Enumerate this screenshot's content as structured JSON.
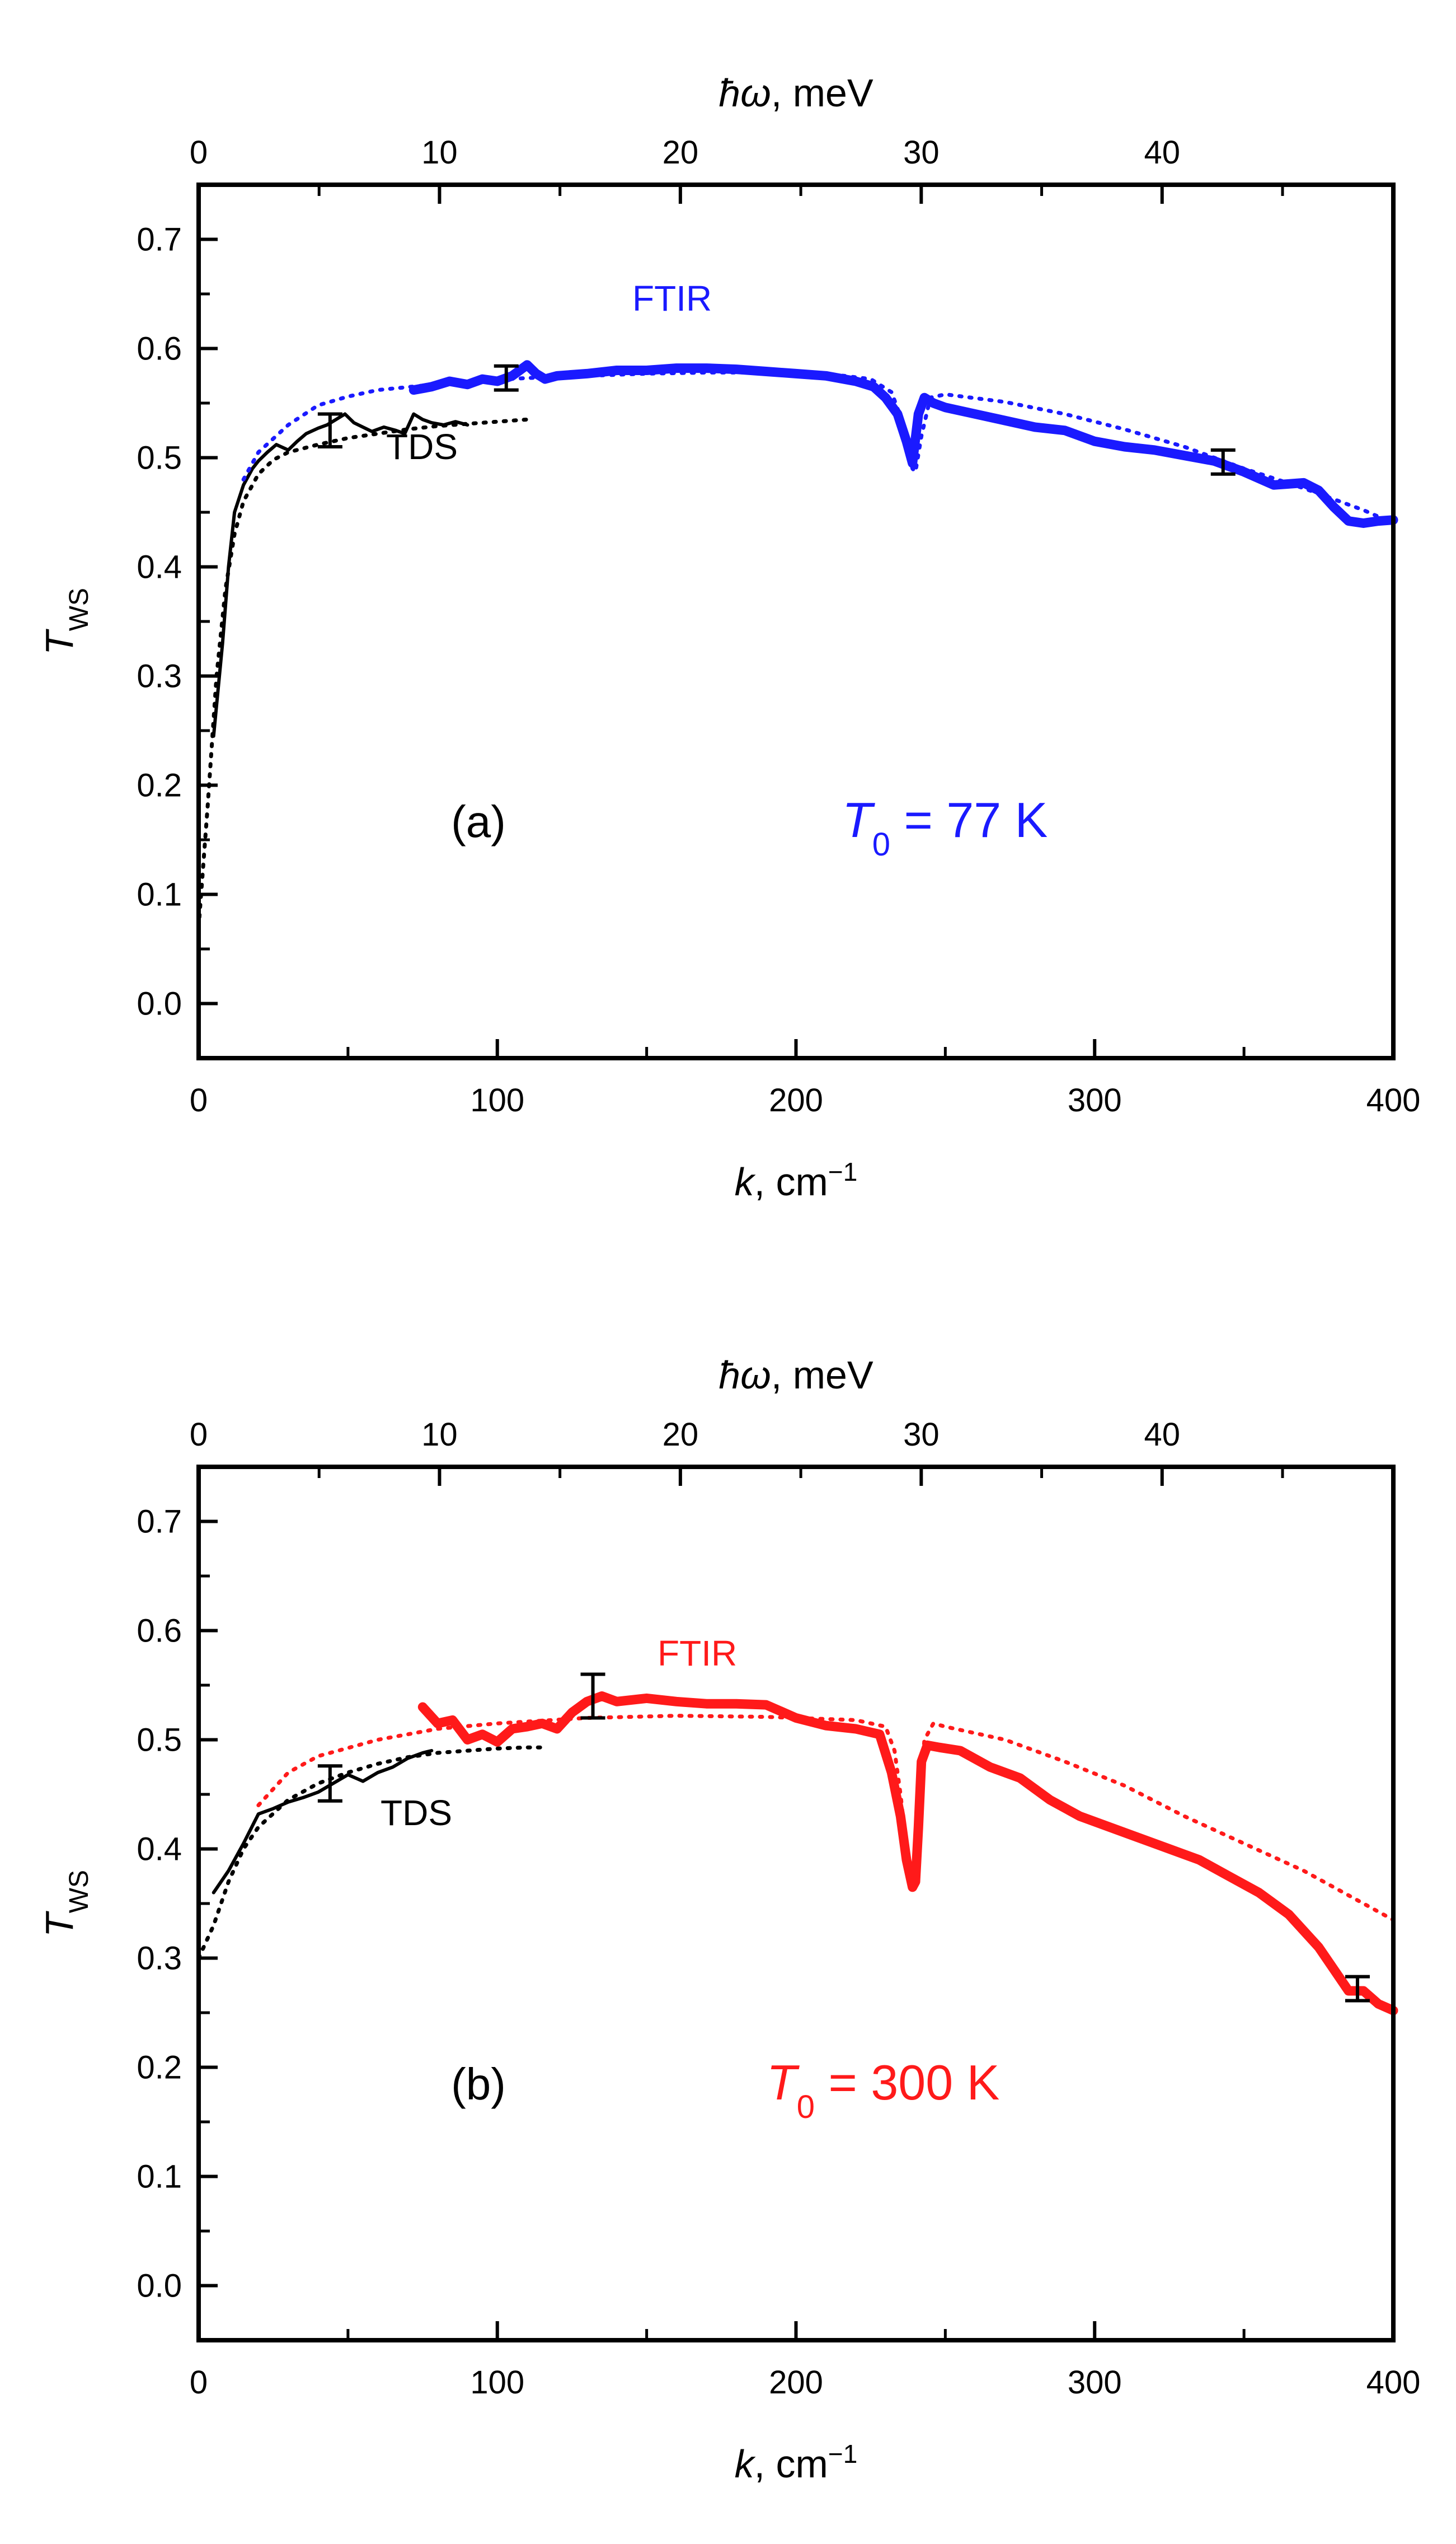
{
  "chart_data": [
    {
      "type": "line",
      "panel_label": "(a)",
      "condition": {
        "symbol": "T",
        "subscript": "0",
        "rest": " = 77 K"
      },
      "color": "#1a1aff",
      "xlabel": {
        "var": "k",
        "rest": ", cm",
        "sup": "−1"
      },
      "x2label": {
        "var": "ħω",
        "rest": ", meV"
      },
      "ylabel": {
        "var": "T",
        "sub": "WS"
      },
      "xlim": [
        0,
        400
      ],
      "ylim": [
        -0.05,
        0.75
      ],
      "x2lim": [
        0,
        49.6
      ],
      "xticks": [
        0,
        100,
        200,
        300,
        400
      ],
      "x2ticks": [
        0,
        10,
        20,
        30,
        40
      ],
      "yticks": [
        0.0,
        0.1,
        0.2,
        0.3,
        0.4,
        0.5,
        0.6,
        0.7
      ],
      "yticklabels": [
        "0.0",
        "0.1",
        "0.2",
        "0.3",
        "0.4",
        "0.5",
        "0.6",
        "0.7"
      ],
      "annotations": {
        "tds": "TDS",
        "ftir": "FTIR"
      },
      "series": [
        {
          "name": "TDS",
          "style": "solid",
          "color": "#000000",
          "x": [
            5,
            8,
            10,
            12,
            15,
            18,
            20,
            23,
            26,
            30,
            33,
            36,
            40,
            43,
            46,
            49,
            52,
            55,
            58,
            62,
            66,
            69,
            72,
            75,
            78,
            82,
            86,
            90
          ],
          "y": [
            0.245,
            0.33,
            0.4,
            0.45,
            0.475,
            0.49,
            0.497,
            0.505,
            0.512,
            0.507,
            0.515,
            0.522,
            0.527,
            0.53,
            0.535,
            0.54,
            0.532,
            0.528,
            0.524,
            0.528,
            0.525,
            0.522,
            0.54,
            0.535,
            0.532,
            0.53,
            0.533,
            0.53
          ]
        },
        {
          "name": "TDS fit",
          "style": "dotted",
          "color": "#000000",
          "x": [
            0,
            3,
            6,
            9,
            12,
            15,
            20,
            25,
            30,
            40,
            50,
            60,
            70,
            80,
            90,
            100,
            110
          ],
          "y": [
            0.07,
            0.18,
            0.3,
            0.38,
            0.43,
            0.46,
            0.485,
            0.498,
            0.505,
            0.512,
            0.518,
            0.522,
            0.526,
            0.529,
            0.531,
            0.533,
            0.535
          ]
        },
        {
          "name": "FTIR",
          "style": "solid-thick",
          "color": "#1a1aff",
          "x": [
            72,
            78,
            84,
            90,
            95,
            100,
            105,
            110,
            113,
            116,
            120,
            130,
            140,
            150,
            160,
            170,
            180,
            190,
            200,
            210,
            220,
            226,
            230,
            234,
            237,
            239,
            241,
            243,
            246,
            250,
            260,
            270,
            280,
            290,
            300,
            310,
            320,
            330,
            340,
            350,
            360,
            370,
            375,
            380,
            385,
            390,
            395,
            400
          ],
          "y": [
            0.562,
            0.565,
            0.57,
            0.567,
            0.572,
            0.57,
            0.575,
            0.585,
            0.577,
            0.572,
            0.575,
            0.577,
            0.58,
            0.58,
            0.582,
            0.582,
            0.581,
            0.579,
            0.577,
            0.575,
            0.57,
            0.565,
            0.555,
            0.54,
            0.515,
            0.495,
            0.54,
            0.555,
            0.55,
            0.546,
            0.54,
            0.534,
            0.528,
            0.525,
            0.515,
            0.51,
            0.507,
            0.502,
            0.497,
            0.487,
            0.475,
            0.477,
            0.47,
            0.455,
            0.442,
            0.44,
            0.442,
            0.443
          ]
        },
        {
          "name": "FTIR fit",
          "style": "dotted",
          "color": "#1a1aff",
          "x": [
            15,
            20,
            30,
            40,
            50,
            60,
            75,
            90,
            110,
            130,
            150,
            170,
            190,
            210,
            225,
            232,
            236,
            239,
            240,
            242,
            245,
            250,
            270,
            290,
            310,
            330,
            350,
            370,
            390,
            400
          ],
          "y": [
            0.48,
            0.505,
            0.53,
            0.548,
            0.556,
            0.562,
            0.566,
            0.57,
            0.573,
            0.575,
            0.577,
            0.578,
            0.578,
            0.577,
            0.572,
            0.56,
            0.53,
            0.49,
            0.487,
            0.52,
            0.555,
            0.558,
            0.551,
            0.54,
            0.526,
            0.51,
            0.49,
            0.472,
            0.452,
            0.44
          ]
        }
      ],
      "error_bars": [
        {
          "x": 44,
          "y": 0.525,
          "err": 0.015
        },
        {
          "x": 103,
          "y": 0.573,
          "err": 0.011
        },
        {
          "x": 343,
          "y": 0.496,
          "err": 0.011
        }
      ]
    },
    {
      "type": "line",
      "panel_label": "(b)",
      "condition": {
        "symbol": "T",
        "subscript": "0",
        "rest": " = 300 K"
      },
      "color": "#ff1a1a",
      "xlabel": {
        "var": "k",
        "rest": ", cm",
        "sup": "−1"
      },
      "x2label": {
        "var": "ħω",
        "rest": ", meV"
      },
      "ylabel": {
        "var": "T",
        "sub": "WS"
      },
      "xlim": [
        0,
        400
      ],
      "ylim": [
        -0.05,
        0.75
      ],
      "x2lim": [
        0,
        49.6
      ],
      "xticks": [
        0,
        100,
        200,
        300,
        400
      ],
      "x2ticks": [
        0,
        10,
        20,
        30,
        40
      ],
      "yticks": [
        0.0,
        0.1,
        0.2,
        0.3,
        0.4,
        0.5,
        0.6,
        0.7
      ],
      "yticklabels": [
        "0.0",
        "0.1",
        "0.2",
        "0.3",
        "0.4",
        "0.5",
        "0.6",
        "0.7"
      ],
      "annotations": {
        "tds": "TDS",
        "ftir": "FTIR"
      },
      "series": [
        {
          "name": "TDS",
          "style": "solid",
          "color": "#000000",
          "x": [
            5,
            10,
            15,
            20,
            25,
            30,
            35,
            40,
            45,
            50,
            55,
            60,
            65,
            70,
            75,
            78
          ],
          "y": [
            0.36,
            0.38,
            0.405,
            0.432,
            0.437,
            0.443,
            0.447,
            0.452,
            0.46,
            0.468,
            0.462,
            0.47,
            0.475,
            0.483,
            0.488,
            0.49
          ]
        },
        {
          "name": "TDS fit",
          "style": "dotted",
          "color": "#000000",
          "x": [
            0,
            5,
            10,
            15,
            20,
            30,
            40,
            50,
            60,
            70,
            80,
            90,
            100,
            110,
            115
          ],
          "y": [
            0.3,
            0.33,
            0.37,
            0.4,
            0.42,
            0.445,
            0.46,
            0.47,
            0.478,
            0.484,
            0.488,
            0.49,
            0.492,
            0.493,
            0.493
          ]
        },
        {
          "name": "FTIR",
          "style": "solid-thick",
          "color": "#ff1a1a",
          "x": [
            75,
            80,
            85,
            90,
            95,
            100,
            105,
            110,
            115,
            120,
            125,
            130,
            135,
            140,
            150,
            160,
            170,
            180,
            190,
            200,
            210,
            220,
            228,
            232,
            235,
            237,
            239,
            240,
            241,
            242,
            244,
            248,
            255,
            265,
            275,
            285,
            295,
            305,
            315,
            325,
            335,
            345,
            355,
            365,
            375,
            380,
            385,
            390,
            395,
            400
          ],
          "y": [
            0.53,
            0.515,
            0.518,
            0.5,
            0.505,
            0.498,
            0.51,
            0.512,
            0.515,
            0.51,
            0.525,
            0.535,
            0.54,
            0.535,
            0.538,
            0.535,
            0.533,
            0.533,
            0.532,
            0.52,
            0.513,
            0.51,
            0.505,
            0.47,
            0.43,
            0.39,
            0.365,
            0.37,
            0.42,
            0.48,
            0.495,
            0.493,
            0.49,
            0.475,
            0.465,
            0.445,
            0.43,
            0.42,
            0.41,
            0.4,
            0.39,
            0.375,
            0.36,
            0.34,
            0.31,
            0.29,
            0.27,
            0.27,
            0.258,
            0.252
          ]
        },
        {
          "name": "FTIR fit",
          "style": "dotted",
          "color": "#ff1a1a",
          "x": [
            20,
            30,
            40,
            60,
            80,
            100,
            130,
            160,
            190,
            220,
            230,
            233,
            235,
            237,
            239,
            240,
            241,
            243,
            246,
            250,
            270,
            290,
            310,
            330,
            350,
            370,
            390,
            400
          ],
          "y": [
            0.44,
            0.47,
            0.485,
            0.5,
            0.51,
            0.515,
            0.52,
            0.522,
            0.521,
            0.518,
            0.512,
            0.49,
            0.45,
            0.4,
            0.37,
            0.375,
            0.43,
            0.5,
            0.515,
            0.512,
            0.5,
            0.48,
            0.458,
            0.43,
            0.405,
            0.38,
            0.35,
            0.335
          ]
        }
      ],
      "error_bars": [
        {
          "x": 44,
          "y": 0.46,
          "err": 0.016
        },
        {
          "x": 132,
          "y": 0.54,
          "err": 0.02
        },
        {
          "x": 388,
          "y": 0.272,
          "err": 0.011
        }
      ]
    }
  ]
}
